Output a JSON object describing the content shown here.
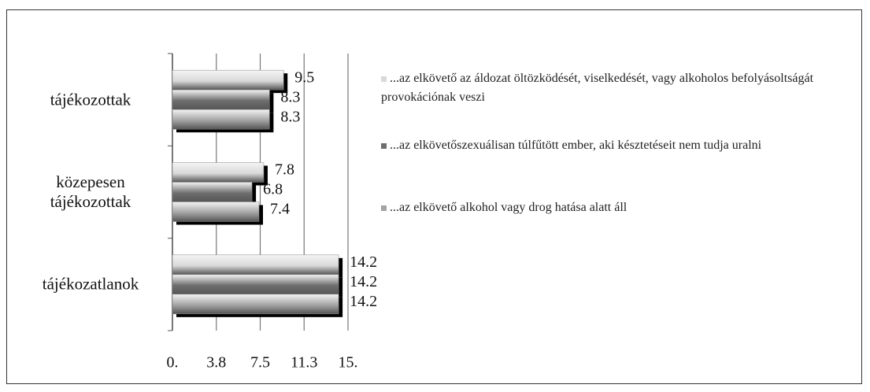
{
  "chart_data": {
    "type": "bar",
    "orientation": "horizontal",
    "categories": [
      "tájékozottak",
      "közepesen tájékozottak",
      "tájékozatlanok"
    ],
    "series": [
      {
        "name": "...az elkövető az áldozat öltözködését, viselkedését, vagy alkoholos befolyásoltságát provokációnak veszi",
        "color": "#d9d9d9",
        "values": [
          9.5,
          7.8,
          14.2
        ]
      },
      {
        "name": "...az elkövetőszexuálisan túlfűtött ember, aki késztetéseit nem tudja uralni",
        "color": "#6e6e6e",
        "values": [
          8.3,
          6.8,
          14.2
        ]
      },
      {
        "name": "...az elkövető alkohol vagy drog hatása alatt áll",
        "color": "#a3a3a3",
        "values": [
          8.3,
          7.4,
          14.2
        ]
      }
    ],
    "xlim": [
      0,
      15
    ],
    "xticks": [
      {
        "value": 0,
        "label": "0."
      },
      {
        "value": 3.75,
        "label": "3.8"
      },
      7.5,
      {
        "value": 11.25,
        "label": "11.3"
      },
      {
        "value": 15,
        "label": "15."
      }
    ],
    "grid": true,
    "legend": "right"
  }
}
